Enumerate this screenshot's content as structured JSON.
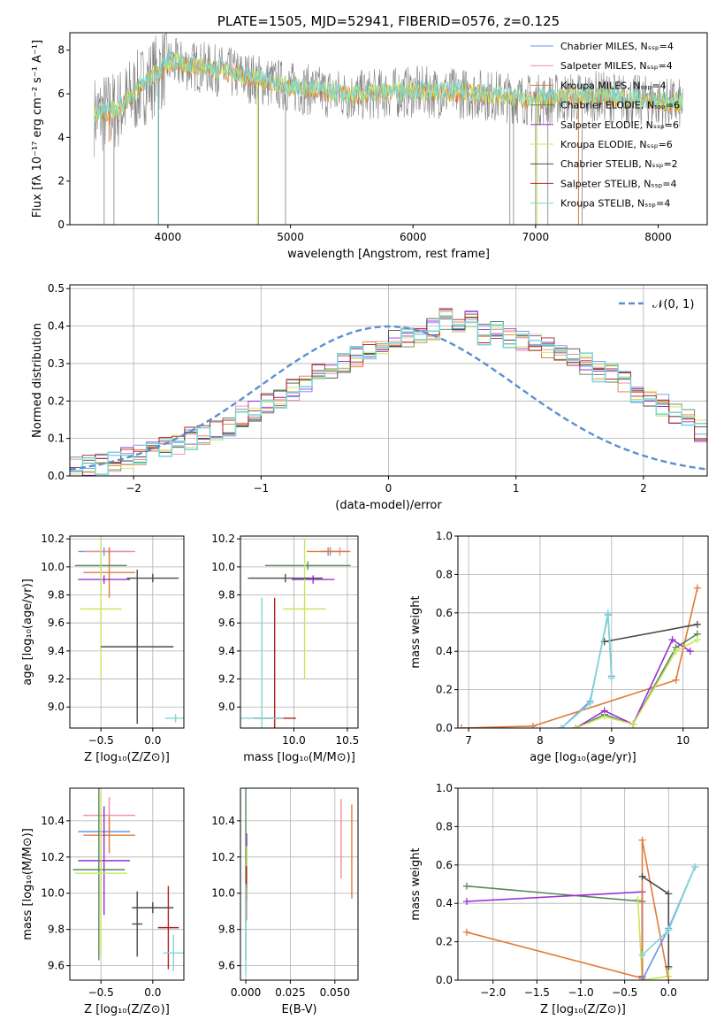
{
  "figure": {
    "colors": {
      "chabrier_miles": "#6495ed",
      "salpeter_miles": "#f08c9e",
      "kroupa_miles": "#e07b39",
      "chabrier_elodie": "#55885a",
      "salpeter_elodie": "#9b30d0",
      "kroupa_elodie": "#c8e65a",
      "chabrier_stelib": "#4a4a4a",
      "salpeter_stelib": "#b22222",
      "kroupa_stelib": "#7ed6d6",
      "data": "#808080",
      "gaussian": "#5b8fd0"
    }
  },
  "chart_data": [
    {
      "id": "spectrum",
      "type": "line",
      "title": "PLATE=1505, MJD=52941, FIBERID=0576, z=0.125",
      "xlabel": "wavelength [Angstrom, rest frame]",
      "ylabel": "Flux [fλ 10⁻¹⁷ erg cm⁻² s⁻¹ A⁻¹]",
      "xlim": [
        3200,
        8400
      ],
      "ylim": [
        0,
        8.8
      ],
      "xticks": [
        4000,
        5000,
        6000,
        7000,
        8000
      ],
      "yticks": [
        0,
        2,
        4,
        6,
        8
      ],
      "grid": false,
      "legend_position": "top-right",
      "legend": [
        {
          "label": "Chabrier MILES, Nₛₛₚ=4",
          "color": "#6495ed"
        },
        {
          "label": "Salpeter MILES, Nₛₛₚ=4",
          "color": "#f08c9e"
        },
        {
          "label": "Kroupa MILES, Nₛₛₚ=4",
          "color": "#e07b39"
        },
        {
          "label": "Chabrier ELODIE, Nₛₛₚ=6",
          "color": "#55885a"
        },
        {
          "label": "Salpeter ELODIE, Nₛₛₚ=6",
          "color": "#9b30d0"
        },
        {
          "label": "Kroupa ELODIE, Nₛₛₚ=6",
          "color": "#c8e65a"
        },
        {
          "label": "Chabrier STELIB, Nₛₛₚ=2",
          "color": "#4a4a4a"
        },
        {
          "label": "Salpeter STELIB, Nₛₛₚ=4",
          "color": "#b22222"
        },
        {
          "label": "Kroupa STELIB, Nₛₛₚ=4",
          "color": "#7ed6d6"
        }
      ],
      "continuum": [
        [
          3400,
          5.0
        ],
        [
          3600,
          5.3
        ],
        [
          3800,
          6.4
        ],
        [
          3950,
          7.1
        ],
        [
          4000,
          7.4
        ],
        [
          4300,
          7.2
        ],
        [
          4700,
          6.7
        ],
        [
          5000,
          6.3
        ],
        [
          5500,
          5.9
        ],
        [
          6000,
          6.1
        ],
        [
          6500,
          6.0
        ],
        [
          7000,
          5.7
        ],
        [
          7500,
          5.9
        ],
        [
          8000,
          5.6
        ],
        [
          8200,
          5.5
        ]
      ],
      "data_spikes": [
        [
          3480,
          0.0
        ],
        [
          3560,
          0.0
        ],
        [
          3925,
          0.0
        ],
        [
          4740,
          0.0
        ],
        [
          4960,
          0.0
        ],
        [
          6790,
          0.0
        ],
        [
          6820,
          0.0
        ],
        [
          7000,
          0.0
        ],
        [
          7100,
          0.0
        ],
        [
          7380,
          0.0
        ]
      ]
    },
    {
      "id": "residuals",
      "type": "histogram",
      "xlabel": "(data-model)/error",
      "ylabel": "Normed distribution",
      "xlim": [
        -2.5,
        2.5
      ],
      "ylim": [
        0,
        0.51
      ],
      "xticks": [
        -2,
        -1,
        0,
        1,
        2
      ],
      "yticks": [
        0.0,
        0.1,
        0.2,
        0.3,
        0.4,
        0.5
      ],
      "grid": true,
      "legend_position": "top-right",
      "legend": [
        {
          "label": "𝒩(0, 1)",
          "color": "#5b8fd0"
        }
      ],
      "bin_width": 0.1,
      "bins_start": -2.5,
      "histogram_values": [
        0.02,
        0.025,
        0.03,
        0.04,
        0.05,
        0.06,
        0.07,
        0.08,
        0.085,
        0.1,
        0.11,
        0.12,
        0.13,
        0.16,
        0.17,
        0.19,
        0.2,
        0.23,
        0.25,
        0.27,
        0.29,
        0.3,
        0.32,
        0.33,
        0.35,
        0.36,
        0.37,
        0.38,
        0.39,
        0.42,
        0.4,
        0.41,
        0.38,
        0.39,
        0.37,
        0.36,
        0.35,
        0.34,
        0.33,
        0.31,
        0.3,
        0.28,
        0.27,
        0.25,
        0.22,
        0.2,
        0.19,
        0.17,
        0.15,
        0.12
      ]
    },
    {
      "id": "age-vs-z",
      "type": "errorbar",
      "xlabel": "Z [log₁₀(Z/Z⊙)]",
      "ylabel": "age  [log₁₀(age/yr)]",
      "xlim": [
        -0.8,
        0.3
      ],
      "ylim": [
        8.85,
        10.22
      ],
      "xticks": [
        -0.5,
        0.0
      ],
      "xticklabels": [
        "−0.5",
        "0.0"
      ],
      "yticks": [
        9.0,
        9.2,
        9.4,
        9.6,
        9.8,
        10.0,
        10.2
      ],
      "grid": true,
      "points": [
        {
          "x": -0.47,
          "xerr": 0.25,
          "y": 10.11,
          "yerr": 0.03,
          "color": "#6495ed"
        },
        {
          "x": -0.42,
          "xerr": 0.25,
          "y": 10.11,
          "yerr": 0.03,
          "color": "#f08c9e"
        },
        {
          "x": -0.42,
          "xerr": 0.25,
          "y": 9.96,
          "yerr": 0.18,
          "color": "#e07b39"
        },
        {
          "x": -0.5,
          "xerr": 0.25,
          "y": 10.01,
          "yerr": 0.03,
          "color": "#55885a"
        },
        {
          "x": -0.47,
          "xerr": 0.25,
          "y": 9.91,
          "yerr": 0.03,
          "color": "#9b30d0"
        },
        {
          "x": -0.5,
          "xerr": 0.2,
          "y": 9.7,
          "yerr": 0.49,
          "color": "#c8e65a"
        },
        {
          "x": -0.15,
          "xerr": 0.35,
          "y": 9.43,
          "yerr": 0.55,
          "color": "#4a4a4a"
        },
        {
          "x": 0.0,
          "xerr": 0.25,
          "y": 9.92,
          "yerr": 0.03,
          "color": "#4a4a4a"
        },
        {
          "x": 0.22,
          "xerr": 0.1,
          "y": 8.92,
          "yerr": 0.03,
          "color": "#7ed6d6"
        }
      ]
    },
    {
      "id": "age-vs-mass",
      "type": "errorbar",
      "xlabel": "mass [log₁₀(M/M⊙)]",
      "ylabel": "",
      "xlim": [
        9.5,
        10.6
      ],
      "ylim": [
        8.85,
        10.22
      ],
      "xticks": [
        10.0,
        10.5
      ],
      "yticks": [
        9.0,
        9.2,
        9.4,
        9.6,
        9.8,
        10.0,
        10.2
      ],
      "grid": true,
      "points": [
        {
          "x": 10.34,
          "xerr": 0.1,
          "y": 10.11,
          "yerr": 0.03,
          "color": "#6495ed"
        },
        {
          "x": 10.43,
          "xerr": 0.1,
          "y": 10.11,
          "yerr": 0.03,
          "color": "#f08c9e"
        },
        {
          "x": 10.32,
          "xerr": 0.2,
          "y": 10.11,
          "yerr": 0.03,
          "color": "#e07b39"
        },
        {
          "x": 10.13,
          "xerr": 0.4,
          "y": 10.01,
          "yerr": 0.03,
          "color": "#55885a"
        },
        {
          "x": 10.18,
          "xerr": 0.2,
          "y": 9.91,
          "yerr": 0.03,
          "color": "#9b30d0"
        },
        {
          "x": 10.1,
          "xerr": 0.2,
          "y": 9.7,
          "yerr": 0.5,
          "color": "#c8e65a"
        },
        {
          "x": 9.92,
          "xerr": 0.35,
          "y": 9.92,
          "yerr": 0.03,
          "color": "#4a4a4a"
        },
        {
          "x": 9.82,
          "xerr": 0.2,
          "y": 8.92,
          "yerr": 0.86,
          "color": "#b22222"
        },
        {
          "x": 9.7,
          "xerr": 0.2,
          "y": 8.92,
          "yerr": 0.86,
          "color": "#7ed6d6"
        }
      ]
    },
    {
      "id": "mass-weight-vs-age",
      "type": "line",
      "xlabel": "age  [log₁₀(age/yr)]",
      "ylabel": "mass weight",
      "xlim": [
        6.85,
        10.35
      ],
      "ylim": [
        0.0,
        1.0
      ],
      "xticks": [
        7,
        8,
        9,
        10
      ],
      "yticks": [
        0.0,
        0.2,
        0.4,
        0.6,
        0.8,
        1.0
      ],
      "grid": true,
      "series": [
        {
          "color": "#6495ed",
          "x": [
            8.3,
            8.7,
            8.95,
            9.0
          ],
          "y": [
            0.0,
            0.14,
            0.59,
            0.27
          ]
        },
        {
          "color": "#e07b39",
          "x": [
            6.9,
            7.9,
            9.9,
            10.2
          ],
          "y": [
            0.0,
            0.01,
            0.25,
            0.73
          ]
        },
        {
          "color": "#55885a",
          "x": [
            8.5,
            8.9,
            9.3,
            9.9,
            10.2
          ],
          "y": [
            0.0,
            0.07,
            0.02,
            0.42,
            0.49
          ]
        },
        {
          "color": "#9b30d0",
          "x": [
            8.5,
            8.9,
            9.3,
            9.85,
            10.1
          ],
          "y": [
            0.0,
            0.09,
            0.02,
            0.46,
            0.4
          ]
        },
        {
          "color": "#c8e65a",
          "x": [
            8.5,
            8.9,
            9.3,
            9.9,
            10.2
          ],
          "y": [
            0.0,
            0.06,
            0.02,
            0.4,
            0.46
          ]
        },
        {
          "color": "#4a4a4a",
          "x": [
            8.9,
            10.2
          ],
          "y": [
            0.45,
            0.54
          ]
        },
        {
          "color": "#7ed6d6",
          "x": [
            8.3,
            8.7,
            8.95,
            9.0
          ],
          "y": [
            0.0,
            0.13,
            0.6,
            0.26
          ]
        }
      ]
    },
    {
      "id": "mass-vs-z",
      "type": "errorbar",
      "xlabel": "Z [log₁₀(Z/Z⊙)]",
      "ylabel": "mass [log₁₀(M/M⊙)]",
      "xlim": [
        -0.8,
        0.3
      ],
      "ylim": [
        9.52,
        10.58
      ],
      "xticks": [
        -0.5,
        0.0
      ],
      "xticklabels": [
        "−0.5",
        "0.0"
      ],
      "yticks": [
        9.6,
        9.8,
        10.0,
        10.2,
        10.4
      ],
      "grid": true,
      "points": [
        {
          "x": -0.42,
          "xerr": 0.25,
          "y": 10.43,
          "yerr": 0.1,
          "color": "#f08c9e"
        },
        {
          "x": -0.47,
          "xerr": 0.25,
          "y": 10.34,
          "yerr": 0.03,
          "color": "#6495ed"
        },
        {
          "x": -0.42,
          "xerr": 0.25,
          "y": 10.32,
          "yerr": 0.1,
          "color": "#e07b39"
        },
        {
          "x": -0.47,
          "xerr": 0.25,
          "y": 10.18,
          "yerr": 0.3,
          "color": "#9b30d0"
        },
        {
          "x": -0.52,
          "xerr": 0.25,
          "y": 10.13,
          "yerr": 0.5,
          "color": "#55885a"
        },
        {
          "x": -0.5,
          "xerr": 0.25,
          "y": 10.11,
          "yerr": 0.45,
          "color": "#c8e65a"
        },
        {
          "x": 0.0,
          "xerr": 0.2,
          "y": 9.92,
          "yerr": 0.03,
          "color": "#4a4a4a"
        },
        {
          "x": -0.15,
          "xerr": 0.05,
          "y": 9.83,
          "yerr": 0.18,
          "color": "#4a4a4a"
        },
        {
          "x": 0.15,
          "xerr": 0.1,
          "y": 9.81,
          "yerr": 0.23,
          "color": "#b22222"
        },
        {
          "x": 0.2,
          "xerr": 0.1,
          "y": 9.67,
          "yerr": 0.1,
          "color": "#7ed6d6"
        }
      ]
    },
    {
      "id": "mass-vs-ebv",
      "type": "errorbar",
      "xlabel": "E(B-V)",
      "ylabel": "",
      "xlim": [
        -0.003,
        0.063
      ],
      "ylim": [
        9.52,
        10.58
      ],
      "xticks": [
        0.0,
        0.025,
        0.05
      ],
      "xticklabels": [
        "0.000",
        "0.025",
        "0.050"
      ],
      "yticks": [
        9.6,
        9.8,
        10.0,
        10.2,
        10.4
      ],
      "grid": true,
      "points": [
        {
          "x": 0.0005,
          "y": 10.18,
          "yerr": 0.15,
          "color": "#9b30d0"
        },
        {
          "x": 0.0,
          "y": 10.13,
          "yerr": 0.5,
          "color": "#55885a"
        },
        {
          "x": 0.0005,
          "y": 10.11,
          "yerr": 0.15,
          "color": "#c8e65a"
        },
        {
          "x": 0.0003,
          "y": 10.0,
          "yerr": 0.15,
          "color": "#b22222"
        },
        {
          "x": 0.0,
          "y": 9.8,
          "yerr": 0.25,
          "color": "#7ed6d6"
        },
        {
          "x": 0.0535,
          "y": 10.3,
          "yerr": 0.22,
          "color": "#f08c9e"
        },
        {
          "x": 0.0595,
          "y": 10.23,
          "yerr": 0.26,
          "color": "#e07b39"
        }
      ]
    },
    {
      "id": "mass-weight-vs-z",
      "type": "line",
      "xlabel": "Z [log₁₀(Z/Z⊙)]",
      "ylabel": "mass weight",
      "xlim": [
        -2.4,
        0.45
      ],
      "ylim": [
        0.0,
        1.0
      ],
      "xticks": [
        -2.0,
        -1.5,
        -1.0,
        -0.5,
        0.0
      ],
      "xticklabels": [
        "−2.0",
        "−1.5",
        "−1.0",
        "−0.5",
        "0.0"
      ],
      "yticks": [
        0.0,
        0.2,
        0.4,
        0.6,
        0.8,
        1.0
      ],
      "grid": true,
      "series": [
        {
          "color": "#55885a",
          "x": [
            -2.3,
            -0.3,
            -0.3
          ],
          "y": [
            0.49,
            0.41,
            0.0
          ]
        },
        {
          "color": "#9b30d0",
          "x": [
            -2.3,
            -0.3,
            -0.3
          ],
          "y": [
            0.41,
            0.46,
            0.02
          ]
        },
        {
          "color": "#c8e65a",
          "x": [
            -0.35,
            -0.3,
            0.0,
            0.0
          ],
          "y": [
            0.42,
            0.0,
            0.02,
            0.06
          ]
        },
        {
          "color": "#e07b39",
          "x": [
            -2.3,
            -0.3,
            -0.3,
            0.0
          ],
          "y": [
            0.25,
            0.01,
            0.73,
            0.0
          ]
        },
        {
          "color": "#4a4a4a",
          "x": [
            -0.3,
            0.0,
            0.0
          ],
          "y": [
            0.54,
            0.45,
            0.07
          ]
        },
        {
          "color": "#6495ed",
          "x": [
            -0.3,
            0.0,
            0.3
          ],
          "y": [
            0.0,
            0.27,
            0.59
          ]
        },
        {
          "color": "#7ed6d6",
          "x": [
            -0.3,
            0.0,
            0.3
          ],
          "y": [
            0.13,
            0.26,
            0.59
          ]
        }
      ]
    }
  ]
}
